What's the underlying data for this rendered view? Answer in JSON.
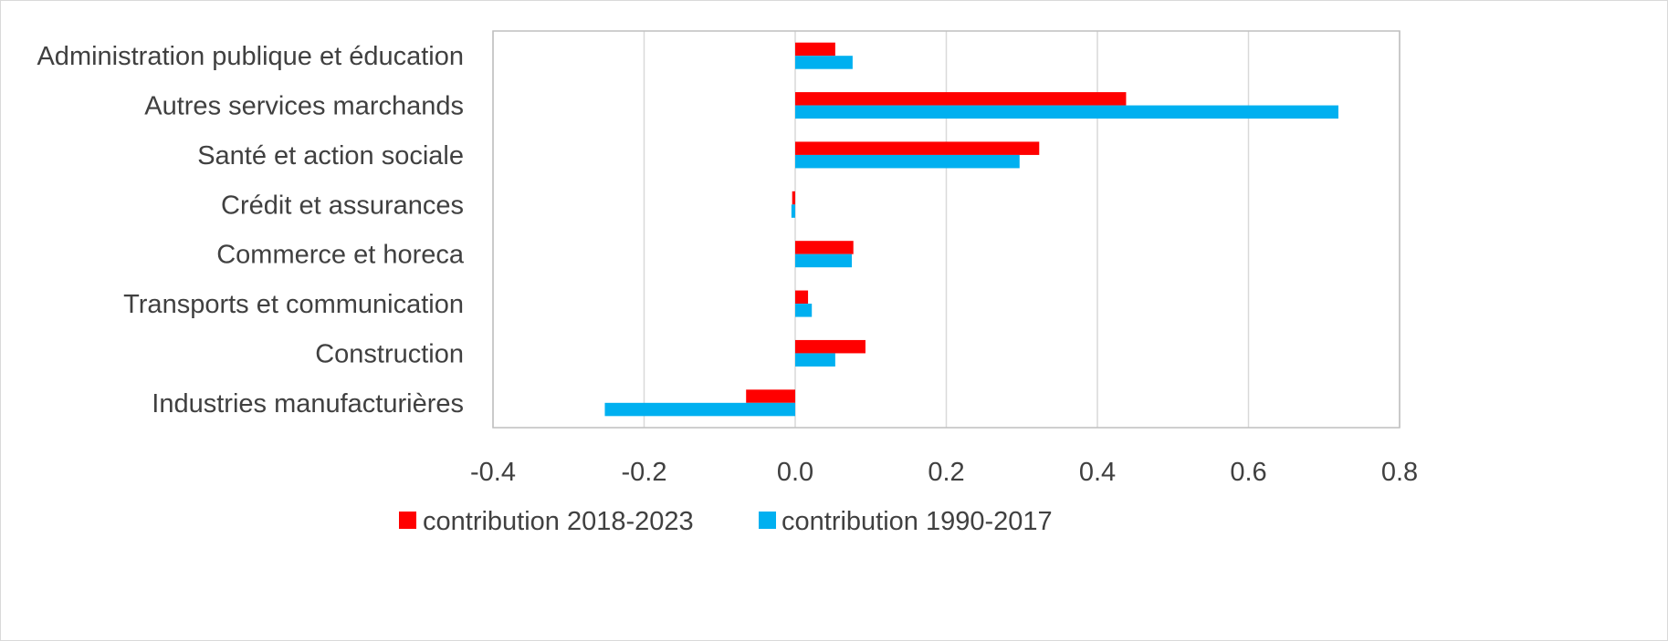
{
  "chart_data": {
    "type": "bar",
    "orientation": "horizontal",
    "title": "",
    "xlabel": "",
    "ylabel": "",
    "categories": [
      "Administration publique et éducation",
      "Autres services marchands",
      "Santé et action sociale",
      "Crédit et assurances",
      "Commerce et horeca",
      "Transports et communication",
      "Construction",
      "Industries manufacturières"
    ],
    "series": [
      {
        "name": "contribution 2018-2023",
        "color": "#ff0000",
        "values": [
          0.053,
          0.438,
          0.323,
          -0.004,
          0.077,
          0.017,
          0.093,
          -0.065
        ]
      },
      {
        "name": "contribution 1990-2017",
        "color": "#00b0f0",
        "values": [
          0.076,
          0.719,
          0.297,
          -0.005,
          0.075,
          0.022,
          0.053,
          -0.252
        ]
      }
    ],
    "xlim": [
      -0.4,
      0.8
    ],
    "xticks": [
      "-0.4",
      "-0.2",
      "0.0",
      "0.2",
      "0.4",
      "0.6",
      "0.8"
    ],
    "grid": "vertical",
    "legend_position": "bottom"
  }
}
